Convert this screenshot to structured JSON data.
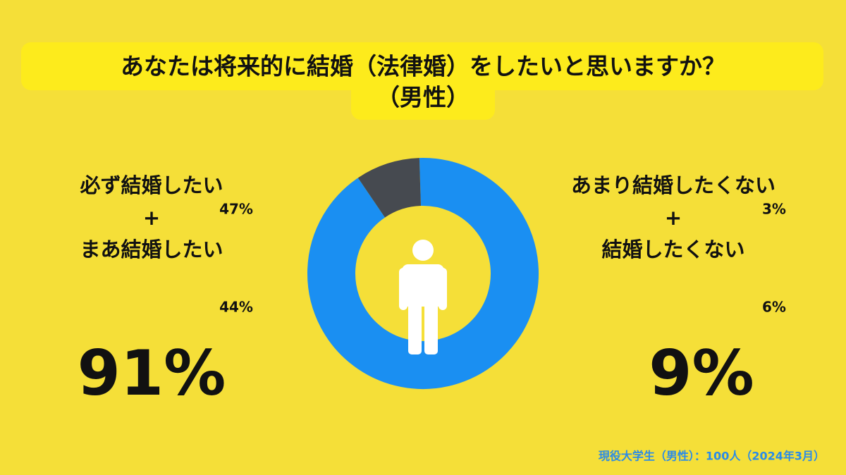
{
  "chart_data": {
    "type": "donut",
    "title": [
      "あなたは将来的に結婚（法律婚）をしたいと思いますか？",
      "（男性）"
    ],
    "groups": [
      {
        "labels": [
          "必ず結婚したい",
          "まあ結婚したい"
        ],
        "joiner": "+",
        "values": [
          47,
          44
        ],
        "value_labels": [
          "47%",
          "44%"
        ],
        "total": 91,
        "total_label": "91%",
        "color": "#1a8ff2"
      },
      {
        "labels": [
          "あまり結婚したくない",
          "結婚したくない"
        ],
        "joiner": "+",
        "values": [
          3,
          6
        ],
        "value_labels": [
          "3%",
          "6%"
        ],
        "total": 9,
        "total_label": "9%",
        "color": "#464a50"
      }
    ],
    "note": "現役大学生（男性）：100人（2024年3月）"
  }
}
